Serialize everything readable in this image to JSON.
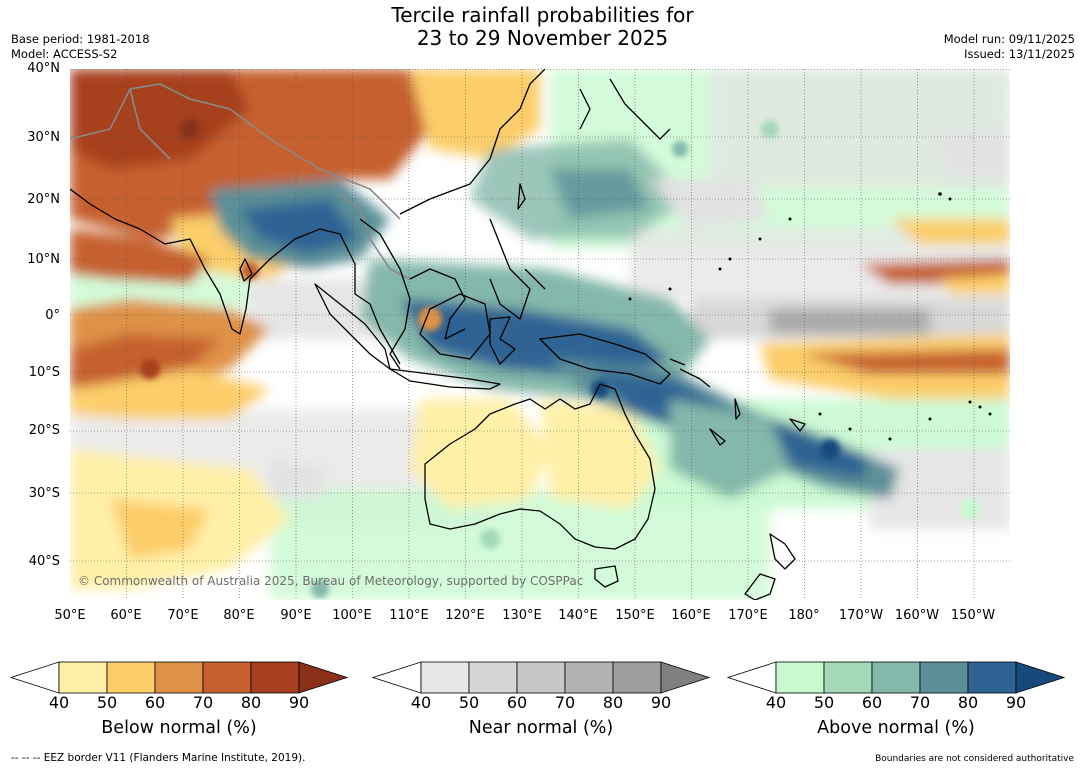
{
  "title": {
    "line1": "Tercile rainfall probabilities for",
    "line2": "23 to 29 November 2025"
  },
  "meta_left": {
    "base_period": "Base period: 1981-2018",
    "model": "Model: ACCESS-S2"
  },
  "meta_right": {
    "model_run": "Model run: 09/11/2025",
    "issued": "Issued: 13/11/2025"
  },
  "map": {
    "lat_labels": [
      "40°N",
      "30°N",
      "20°N",
      "10°N",
      "0°",
      "10°S",
      "20°S",
      "30°S",
      "40°S"
    ],
    "lon_labels": [
      "50°E",
      "60°E",
      "70°E",
      "80°E",
      "90°E",
      "100°E",
      "110°E",
      "120°E",
      "130°E",
      "140°E",
      "150°E",
      "160°E",
      "170°E",
      "180°",
      "170°W",
      "160°W",
      "150°W"
    ],
    "copyright": "© Commonwealth of Australia 2025, Bureau of Meteorology, supported by COSPPac",
    "colors": {
      "below": [
        "#fff0a8",
        "#fcce6b",
        "#de9246",
        "#c6602f",
        "#a7401f",
        "#85301a"
      ],
      "near": [
        "#e6e6e6",
        "#d6d6d6",
        "#c4c4c4",
        "#b0b0b0",
        "#9c9c9c",
        "#808080"
      ],
      "above": [
        "#c8fad0",
        "#a4d8b9",
        "#84b8aa",
        "#5c9098",
        "#2f6394",
        "#17497d"
      ],
      "land_outline": "#000000",
      "border": "#808080"
    }
  },
  "legends": [
    {
      "title": "Below normal (%)",
      "ticks": [
        "40",
        "50",
        "60",
        "70",
        "80",
        "90"
      ],
      "colors": [
        "#fff0a8",
        "#fcce6b",
        "#de9246",
        "#c6602f",
        "#a7401f"
      ],
      "extend_color": "#8c301a"
    },
    {
      "title": "Near normal (%)",
      "ticks": [
        "40",
        "50",
        "60",
        "70",
        "80",
        "90"
      ],
      "colors": [
        "#e6e6e6",
        "#d6d6d6",
        "#c6c6c6",
        "#b2b2b2",
        "#9e9e9e"
      ],
      "extend_color": "#808080"
    },
    {
      "title": "Above normal (%)",
      "ticks": [
        "40",
        "50",
        "60",
        "70",
        "80",
        "90"
      ],
      "colors": [
        "#c8fad0",
        "#a4d8b9",
        "#84b8aa",
        "#5c9098",
        "#2f6394"
      ],
      "extend_color": "#17497d"
    }
  ],
  "footer": {
    "left": "--  --  -- EEZ border V11 (Flanders Marine Institute, 2019).",
    "right": "Boundaries are not considered authoritative"
  }
}
